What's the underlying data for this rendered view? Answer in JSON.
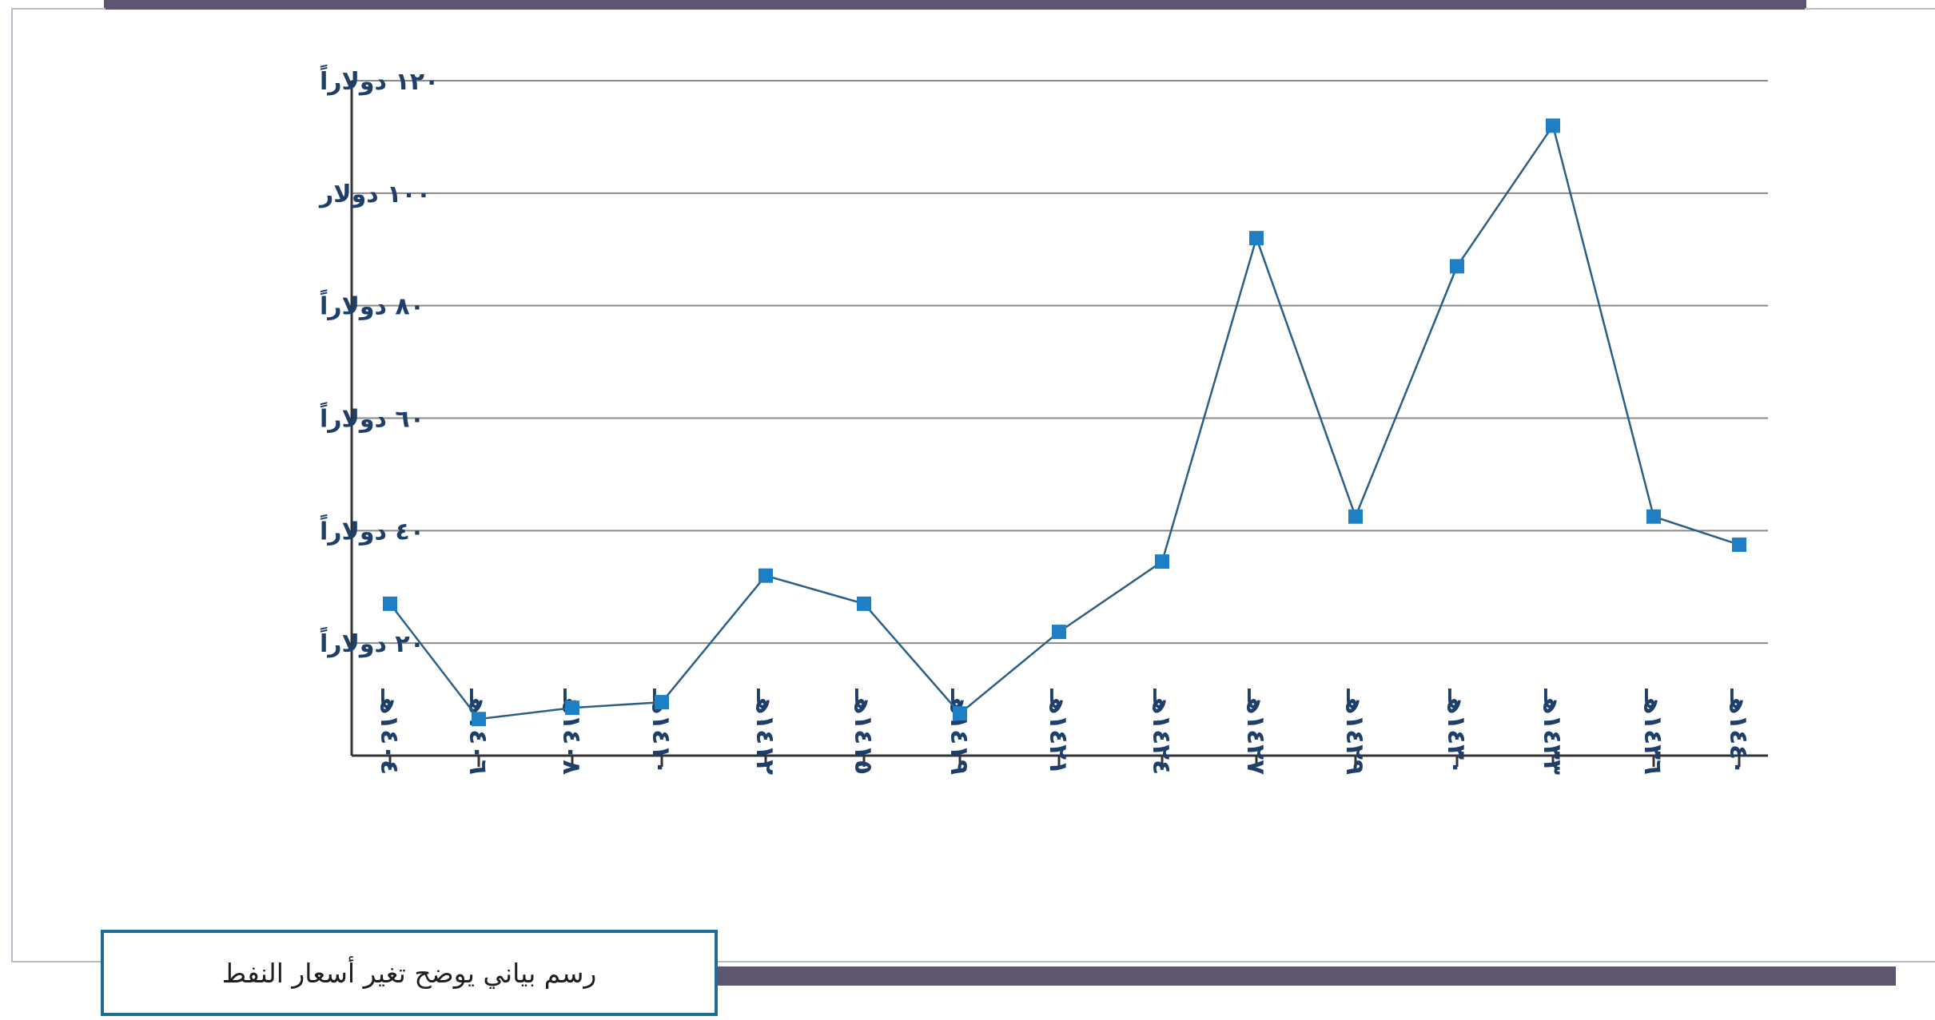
{
  "chart_data": {
    "type": "line",
    "title": "",
    "xlabel": "",
    "ylabel": "",
    "categories": [
      "١٤٠٤هـ",
      "١٤٠٦هـ",
      "١٤٠٨هـ",
      "١٤١٠هـ",
      "١٤١٢هـ",
      "١٤١٥هـ",
      "١٤١٩هـ",
      "١٤٢١هـ",
      "١٤٢٤هـ",
      "١٤٢٧هـ",
      "١٤٢٩هـ",
      "١٤٣٠هـ",
      "١٤٣٣هـ",
      "١٤٣٦هـ",
      "١٤٤٠هـ"
    ],
    "series": [
      {
        "values": [
          27,
          6.5,
          8.5,
          9.5,
          32,
          27,
          7.5,
          22,
          34.5,
          92,
          42.5,
          87,
          112,
          42.5,
          37.5
        ]
      }
    ],
    "y_ticks": [
      {
        "value": 20,
        "label": "٢٠ دولاراً"
      },
      {
        "value": 40,
        "label": "٤٠ دولاراً"
      },
      {
        "value": 60,
        "label": "٦٠ دولاراً"
      },
      {
        "value": 80,
        "label": "٨٠ دولاراً"
      },
      {
        "value": 100,
        "label": "١٠٠ دولار"
      },
      {
        "value": 120,
        "label": "١٢٠ دولاراً"
      }
    ],
    "ylim": [
      0,
      120
    ],
    "grid": true,
    "line_color": "#2b5f86",
    "marker_color": "#1f7fc4",
    "label_color": "#1f3f6b"
  },
  "caption": {
    "text": "رسم بياني يوضح تغير أسعار النفط",
    "border_color": "#1f6d96"
  },
  "decor": {
    "bar_color": "#5e5670",
    "frame_color": "#b3bcc8"
  }
}
